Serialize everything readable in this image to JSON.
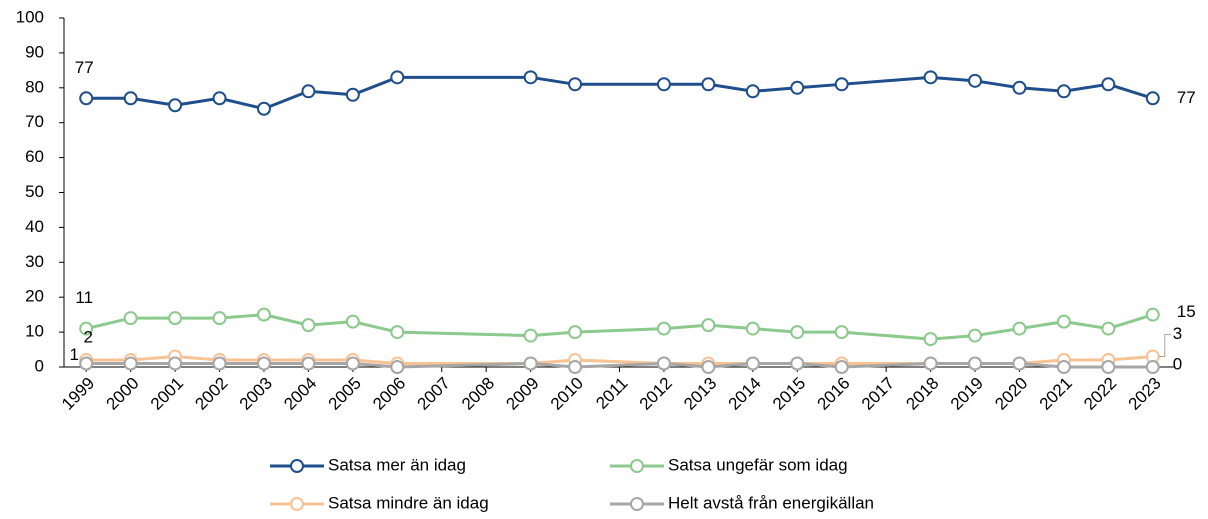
{
  "chart_data": {
    "type": "line",
    "x": [
      1999,
      2000,
      2001,
      2002,
      2003,
      2004,
      2005,
      2006,
      2009,
      2010,
      2012,
      2013,
      2014,
      2015,
      2016,
      2018,
      2019,
      2020,
      2021,
      2022,
      2023
    ],
    "series": [
      {
        "name": "Satsa mer än idag",
        "color": "#1f4e8c",
        "values": [
          77,
          77,
          75,
          77,
          74,
          79,
          78,
          83,
          83,
          81,
          81,
          81,
          79,
          80,
          81,
          83,
          82,
          80,
          79,
          81,
          77
        ],
        "value_labels": [
          "77",
          null,
          null,
          null,
          null,
          null,
          null,
          null,
          null,
          null,
          null,
          null,
          null,
          null,
          null,
          null,
          null,
          null,
          null,
          null,
          "77"
        ]
      },
      {
        "name": "Satsa ungefär som idag",
        "color": "#8cc98c",
        "values": [
          11,
          14,
          14,
          14,
          15,
          12,
          13,
          10,
          9,
          10,
          11,
          12,
          11,
          10,
          10,
          8,
          9,
          11,
          13,
          11,
          15
        ],
        "value_labels": [
          "11",
          null,
          null,
          null,
          null,
          null,
          null,
          null,
          null,
          null,
          null,
          null,
          null,
          null,
          null,
          null,
          null,
          null,
          null,
          null,
          "15"
        ]
      },
      {
        "name": "Satsa mindre än idag",
        "color": "#f8c293",
        "values": [
          2,
          2,
          3,
          2,
          2,
          2,
          2,
          1,
          1,
          2,
          1,
          1,
          1,
          1,
          1,
          1,
          1,
          1,
          2,
          2,
          3
        ],
        "value_labels": [
          "2",
          null,
          null,
          null,
          null,
          null,
          null,
          null,
          null,
          null,
          null,
          null,
          null,
          null,
          null,
          null,
          null,
          null,
          null,
          null,
          "3"
        ]
      },
      {
        "name": "Helt avstå från energikällan",
        "color": "#a6a6a6",
        "values": [
          1,
          1,
          1,
          1,
          1,
          1,
          1,
          0,
          1,
          0,
          1,
          0,
          1,
          1,
          0,
          1,
          1,
          1,
          0,
          0,
          0
        ],
        "value_labels": [
          "1",
          null,
          null,
          null,
          null,
          null,
          null,
          null,
          null,
          null,
          null,
          null,
          null,
          null,
          null,
          null,
          null,
          null,
          null,
          null,
          "0"
        ]
      }
    ],
    "xlim": [
      1998.5,
      2023.5
    ],
    "xticks": [
      1999,
      2000,
      2001,
      2002,
      2003,
      2004,
      2005,
      2006,
      2007,
      2008,
      2009,
      2010,
      2011,
      2012,
      2013,
      2014,
      2015,
      2016,
      2017,
      2018,
      2019,
      2020,
      2021,
      2022,
      2023
    ],
    "ylim": [
      0,
      100
    ],
    "yticks": [
      0,
      10,
      20,
      30,
      40,
      50,
      60,
      70,
      80,
      90,
      100
    ],
    "grid": false,
    "legend": "bottom"
  }
}
